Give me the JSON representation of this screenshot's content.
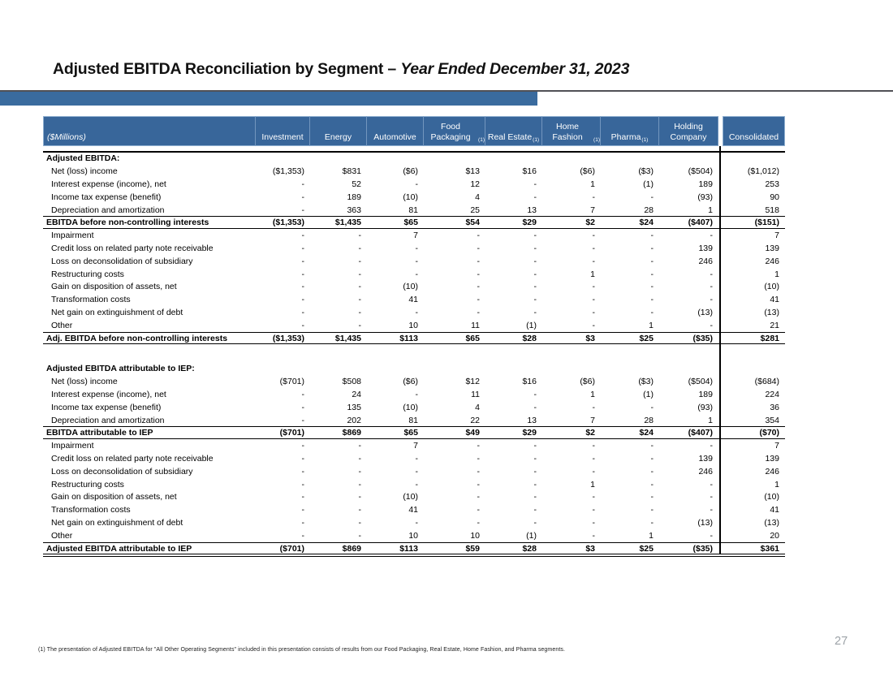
{
  "title": {
    "main": "Adjusted EBITDA Reconciliation by Segment – ",
    "emphasis": "Year Ended December 31, 2023"
  },
  "page_number": "27",
  "footnote": "(1) The presentation of Adjusted EBITDA for \"All Other Operating Segments\" included in this presentation consists of results from our Food Packaging, Real Estate, Home Fashion, and Pharma segments.",
  "colors": {
    "header_blue": "#38669A",
    "accent_bar_blue": "#3A6B9E",
    "header_divider_blue": "#7396BE",
    "rule_dark": "#515156",
    "page_number_gray": "#9DA3A8"
  },
  "table": {
    "columns": [
      {
        "key": "line-item",
        "label": "($Millions)",
        "italic": true
      },
      {
        "key": "investment",
        "label": "Investment"
      },
      {
        "key": "energy",
        "label": "Energy"
      },
      {
        "key": "automotive",
        "label": "Automotive"
      },
      {
        "key": "food-packaging",
        "label": "Food Packaging",
        "sup": "(1)"
      },
      {
        "key": "real-estate",
        "label": "Real Estate",
        "sup": "(1)"
      },
      {
        "key": "home-fashion",
        "label": "Home Fashion",
        "sup": "(1)"
      },
      {
        "key": "pharma",
        "label": "Pharma",
        "sup": "(1)"
      },
      {
        "key": "holding-company",
        "label": "Holding Company"
      },
      {
        "key": "consolidated",
        "label": "Consolidated"
      }
    ],
    "rows": [
      {
        "type": "section",
        "label": "Adjusted EBITDA:"
      },
      {
        "type": "item",
        "label": "Net (loss) income",
        "values": [
          "($1,353)",
          "$831",
          "($6)",
          "$13",
          "$16",
          "($6)",
          "($3)",
          "($504)",
          "($1,012)"
        ]
      },
      {
        "type": "item",
        "label": "Interest expense (income), net",
        "values": [
          "-",
          "52",
          "-",
          "12",
          "-",
          "1",
          "(1)",
          "189",
          "253"
        ]
      },
      {
        "type": "item",
        "label": "Income tax expense (benefit)",
        "values": [
          "-",
          "189",
          "(10)",
          "4",
          "-",
          "-",
          "-",
          "(93)",
          "90"
        ]
      },
      {
        "type": "item",
        "label": "Depreciation and amortization",
        "values": [
          "-",
          "363",
          "81",
          "25",
          "13",
          "7",
          "28",
          "1",
          "518"
        ]
      },
      {
        "type": "subtotal",
        "label": "EBITDA before non-controlling interests",
        "values": [
          "($1,353)",
          "$1,435",
          "$65",
          "$54",
          "$29",
          "$2",
          "$24",
          "($407)",
          "($151)"
        ]
      },
      {
        "type": "item",
        "label": "Impairment",
        "values": [
          "-",
          "-",
          "7",
          "-",
          "-",
          "-",
          "-",
          "-",
          "7"
        ]
      },
      {
        "type": "item",
        "label": "Credit loss on related party note receivable",
        "values": [
          "-",
          "-",
          "-",
          "-",
          "-",
          "-",
          "-",
          "139",
          "139"
        ]
      },
      {
        "type": "item",
        "label": "Loss on deconsolidation of subsidiary",
        "values": [
          "-",
          "-",
          "-",
          "-",
          "-",
          "-",
          "-",
          "246",
          "246"
        ]
      },
      {
        "type": "item",
        "label": "Restructuring costs",
        "values": [
          "-",
          "-",
          "-",
          "-",
          "-",
          "1",
          "-",
          "-",
          "1"
        ]
      },
      {
        "type": "item",
        "label": "Gain on disposition of assets, net",
        "values": [
          "-",
          "-",
          "(10)",
          "-",
          "-",
          "-",
          "-",
          "-",
          "(10)"
        ]
      },
      {
        "type": "item",
        "label": "Transformation costs",
        "values": [
          "-",
          "-",
          "41",
          "-",
          "-",
          "-",
          "-",
          "-",
          "41"
        ]
      },
      {
        "type": "item",
        "label": "Net gain on extinguishment of debt",
        "values": [
          "-",
          "-",
          "-",
          "-",
          "-",
          "-",
          "-",
          "(13)",
          "(13)"
        ]
      },
      {
        "type": "item",
        "label": "Other",
        "values": [
          "-",
          "-",
          "10",
          "11",
          "(1)",
          "-",
          "1",
          "-",
          "21"
        ]
      },
      {
        "type": "subtotal",
        "label": "Adj. EBITDA before non-controlling interests",
        "values": [
          "($1,353)",
          "$1,435",
          "$113",
          "$65",
          "$28",
          "$3",
          "$25",
          "($35)",
          "$281"
        ]
      },
      {
        "type": "gap"
      },
      {
        "type": "section",
        "label": "Adjusted EBITDA attributable to IEP:"
      },
      {
        "type": "item",
        "label": "Net (loss) income",
        "values": [
          "($701)",
          "$508",
          "($6)",
          "$12",
          "$16",
          "($6)",
          "($3)",
          "($504)",
          "($684)"
        ]
      },
      {
        "type": "item",
        "label": "Interest expense (income), net",
        "values": [
          "-",
          "24",
          "-",
          "11",
          "-",
          "1",
          "(1)",
          "189",
          "224"
        ]
      },
      {
        "type": "item",
        "label": "Income tax expense (benefit)",
        "values": [
          "-",
          "135",
          "(10)",
          "4",
          "-",
          "-",
          "-",
          "(93)",
          "36"
        ]
      },
      {
        "type": "item",
        "label": "Depreciation and amortization",
        "values": [
          "-",
          "202",
          "81",
          "22",
          "13",
          "7",
          "28",
          "1",
          "354"
        ]
      },
      {
        "type": "subtotal",
        "label": "EBITDA attributable to IEP",
        "values": [
          "($701)",
          "$869",
          "$65",
          "$49",
          "$29",
          "$2",
          "$24",
          "($407)",
          "($70)"
        ]
      },
      {
        "type": "item",
        "label": "Impairment",
        "values": [
          "-",
          "-",
          "7",
          "-",
          "-",
          "-",
          "-",
          "-",
          "7"
        ]
      },
      {
        "type": "item",
        "label": "Credit loss on related party note receivable",
        "values": [
          "-",
          "-",
          "-",
          "-",
          "-",
          "-",
          "-",
          "139",
          "139"
        ]
      },
      {
        "type": "item",
        "label": "Loss on deconsolidation of subsidiary",
        "values": [
          "-",
          "-",
          "-",
          "-",
          "-",
          "-",
          "-",
          "246",
          "246"
        ]
      },
      {
        "type": "item",
        "label": "Restructuring costs",
        "values": [
          "-",
          "-",
          "-",
          "-",
          "-",
          "1",
          "-",
          "-",
          "1"
        ]
      },
      {
        "type": "item",
        "label": "Gain on disposition of assets, net",
        "values": [
          "-",
          "-",
          "(10)",
          "-",
          "-",
          "-",
          "-",
          "-",
          "(10)"
        ]
      },
      {
        "type": "item",
        "label": "Transformation costs",
        "values": [
          "-",
          "-",
          "41",
          "-",
          "-",
          "-",
          "-",
          "-",
          "41"
        ]
      },
      {
        "type": "item",
        "label": "Net gain on extinguishment of debt",
        "values": [
          "-",
          "-",
          "-",
          "-",
          "-",
          "-",
          "-",
          "(13)",
          "(13)"
        ]
      },
      {
        "type": "item",
        "label": "Other",
        "values": [
          "-",
          "-",
          "10",
          "10",
          "(1)",
          "-",
          "1",
          "-",
          "20"
        ]
      },
      {
        "type": "total",
        "label": "Adjusted EBITDA attributable to IEP",
        "values": [
          "($701)",
          "$869",
          "$113",
          "$59",
          "$28",
          "$3",
          "$25",
          "($35)",
          "$361"
        ]
      }
    ]
  }
}
